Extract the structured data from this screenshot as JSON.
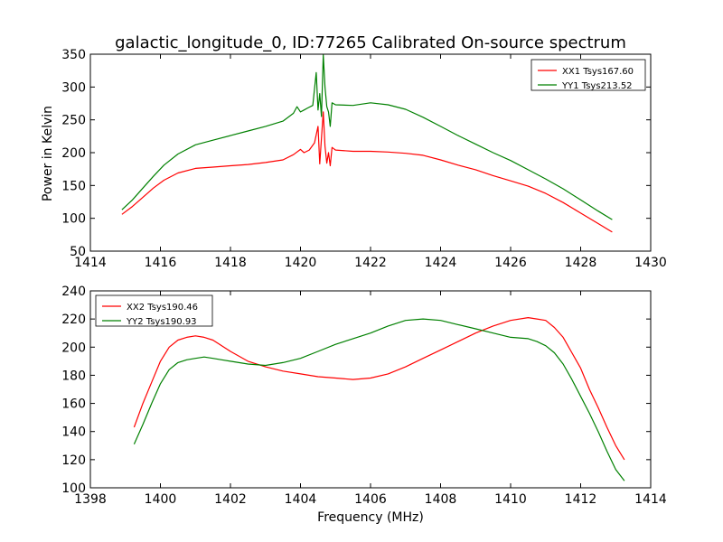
{
  "chart_data": [
    {
      "type": "line",
      "title": "galactic_longitude_0, ID:77265 Calibrated On-source spectrum",
      "xlabel": "",
      "ylabel": "Power in Kelvin",
      "xlim": [
        1414,
        1430
      ],
      "ylim": [
        50,
        350
      ],
      "xticks": [
        1414,
        1416,
        1418,
        1420,
        1422,
        1424,
        1426,
        1428,
        1430
      ],
      "yticks": [
        50,
        100,
        150,
        200,
        250,
        300,
        350
      ],
      "grid": false,
      "legend_position": "top-right",
      "series": [
        {
          "name": "XX1 Tsys167.60",
          "color": "#ff0000",
          "x": [
            1414.9,
            1415.2,
            1415.5,
            1415.8,
            1416.1,
            1416.5,
            1417.0,
            1417.5,
            1418.0,
            1418.5,
            1419.0,
            1419.5,
            1419.8,
            1420.0,
            1420.1,
            1420.25,
            1420.4,
            1420.5,
            1420.55,
            1420.6,
            1420.65,
            1420.7,
            1420.75,
            1420.8,
            1420.85,
            1420.9,
            1421.0,
            1421.5,
            1422.0,
            1422.5,
            1423.0,
            1423.5,
            1424.0,
            1424.5,
            1425.0,
            1425.5,
            1426.0,
            1426.5,
            1427.0,
            1427.5,
            1428.0,
            1428.5,
            1428.9
          ],
          "y": [
            106,
            118,
            132,
            146,
            158,
            169,
            176,
            178,
            180,
            182,
            185,
            189,
            197,
            205,
            200,
            204,
            215,
            240,
            183,
            222,
            262,
            210,
            184,
            200,
            180,
            208,
            204,
            202,
            202,
            201,
            199,
            196,
            189,
            181,
            174,
            165,
            157,
            149,
            138,
            124,
            108,
            92,
            79
          ]
        },
        {
          "name": "YY1 Tsys213.52",
          "color": "#008000",
          "x": [
            1414.9,
            1415.2,
            1415.5,
            1415.8,
            1416.1,
            1416.5,
            1417.0,
            1417.5,
            1418.0,
            1418.5,
            1419.0,
            1419.5,
            1419.8,
            1419.9,
            1420.0,
            1420.1,
            1420.2,
            1420.35,
            1420.45,
            1420.5,
            1420.55,
            1420.6,
            1420.65,
            1420.7,
            1420.75,
            1420.8,
            1420.85,
            1420.9,
            1421.0,
            1421.5,
            1422.0,
            1422.5,
            1423.0,
            1423.5,
            1424.0,
            1424.5,
            1425.0,
            1425.5,
            1426.0,
            1426.5,
            1427.0,
            1427.5,
            1428.0,
            1428.5,
            1428.9
          ],
          "y": [
            113,
            128,
            146,
            164,
            181,
            198,
            212,
            219,
            226,
            233,
            240,
            248,
            260,
            270,
            262,
            265,
            268,
            272,
            322,
            265,
            290,
            255,
            349,
            300,
            270,
            262,
            240,
            276,
            273,
            272,
            276,
            273,
            266,
            254,
            240,
            226,
            213,
            200,
            188,
            174,
            160,
            145,
            128,
            111,
            98
          ]
        }
      ]
    },
    {
      "type": "line",
      "title": "",
      "xlabel": "Frequency (MHz)",
      "ylabel": "",
      "xlim": [
        1398,
        1414
      ],
      "ylim": [
        100,
        240
      ],
      "xticks": [
        1398,
        1400,
        1402,
        1404,
        1406,
        1408,
        1410,
        1412,
        1414
      ],
      "yticks": [
        100,
        120,
        140,
        160,
        180,
        200,
        220,
        240
      ],
      "grid": false,
      "legend_position": "top-left",
      "series": [
        {
          "name": "XX2 Tsys190.46",
          "color": "#ff0000",
          "x": [
            1399.25,
            1399.5,
            1399.75,
            1400.0,
            1400.25,
            1400.5,
            1400.75,
            1401.0,
            1401.25,
            1401.5,
            1401.75,
            1402.0,
            1402.5,
            1403.0,
            1403.5,
            1404.0,
            1404.5,
            1405.0,
            1405.5,
            1406.0,
            1406.5,
            1407.0,
            1407.5,
            1408.0,
            1408.5,
            1409.0,
            1409.5,
            1410.0,
            1410.5,
            1410.75,
            1411.0,
            1411.25,
            1411.5,
            1411.75,
            1412.0,
            1412.25,
            1412.5,
            1412.75,
            1413.0,
            1413.25
          ],
          "y": [
            143,
            160,
            175,
            190,
            200,
            205,
            207,
            208,
            207,
            205,
            201,
            197,
            190,
            186,
            183,
            181,
            179,
            178,
            177,
            178,
            181,
            186,
            192,
            198,
            204,
            210,
            215,
            219,
            221,
            220,
            219,
            214,
            207,
            196,
            185,
            170,
            157,
            143,
            130,
            120
          ]
        },
        {
          "name": "YY2 Tsys190.93",
          "color": "#008000",
          "x": [
            1399.25,
            1399.5,
            1399.75,
            1400.0,
            1400.25,
            1400.5,
            1400.75,
            1401.0,
            1401.25,
            1401.5,
            1401.75,
            1402.0,
            1402.5,
            1403.0,
            1403.5,
            1404.0,
            1404.5,
            1405.0,
            1405.5,
            1406.0,
            1406.5,
            1407.0,
            1407.5,
            1408.0,
            1408.5,
            1409.0,
            1409.5,
            1410.0,
            1410.5,
            1410.75,
            1411.0,
            1411.25,
            1411.5,
            1411.75,
            1412.0,
            1412.25,
            1412.5,
            1412.75,
            1413.0,
            1413.25
          ],
          "y": [
            131,
            145,
            160,
            174,
            184,
            189,
            191,
            192,
            193,
            192,
            191,
            190,
            188,
            187,
            189,
            192,
            197,
            202,
            206,
            210,
            215,
            219,
            220,
            219,
            216,
            213,
            210,
            207,
            206,
            204,
            201,
            196,
            188,
            177,
            165,
            153,
            140,
            126,
            113,
            105
          ]
        }
      ]
    }
  ]
}
